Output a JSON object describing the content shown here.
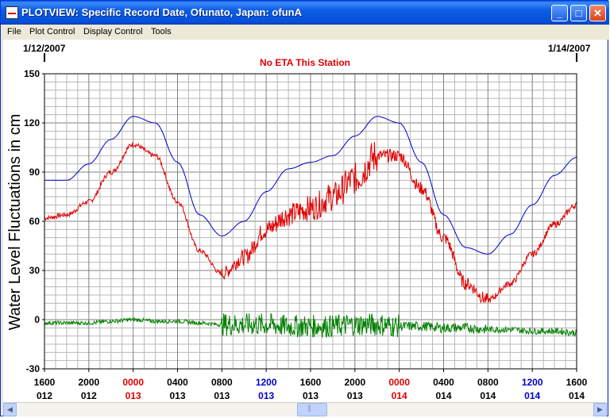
{
  "window": {
    "title": "PLOTVIEW: Specific Record Date, Ofunato, Japan: ofunA"
  },
  "menu": {
    "file": "File",
    "plot_control": "Plot Control",
    "display_control": "Display Control",
    "tools": "Tools"
  },
  "window_controls": {
    "minimize": "_",
    "maximize": "□",
    "close": "✕"
  },
  "plot": {
    "date_left": "1/12/2007",
    "date_right": "1/14/2007",
    "note": "No ETA This Station",
    "ylabel": "Water Level Fluctuations in cm",
    "y_ticks": [
      "150",
      "120",
      "90",
      "60",
      "30",
      "0",
      "-30"
    ],
    "x_ticks": [
      {
        "time": "1600",
        "day": "012",
        "color": "#000000"
      },
      {
        "time": "2000",
        "day": "012",
        "color": "#000000"
      },
      {
        "time": "0000",
        "day": "013",
        "color": "#e00000"
      },
      {
        "time": "0400",
        "day": "013",
        "color": "#000000"
      },
      {
        "time": "0800",
        "day": "013",
        "color": "#000000"
      },
      {
        "time": "1200",
        "day": "013",
        "color": "#0000c8"
      },
      {
        "time": "1600",
        "day": "013",
        "color": "#000000"
      },
      {
        "time": "2000",
        "day": "013",
        "color": "#000000"
      },
      {
        "time": "0000",
        "day": "014",
        "color": "#e00000"
      },
      {
        "time": "0400",
        "day": "014",
        "color": "#000000"
      },
      {
        "time": "0800",
        "day": "014",
        "color": "#000000"
      },
      {
        "time": "1200",
        "day": "014",
        "color": "#0000c8"
      },
      {
        "time": "1600",
        "day": "014",
        "color": "#000000"
      }
    ]
  },
  "chart_data": {
    "type": "line",
    "ylabel": "Water Level Fluctuations in cm",
    "ylim": [
      -30,
      150
    ],
    "x_range_hours": [
      0,
      48
    ],
    "x_unit": "hours since 1600 day 012",
    "grid": true,
    "series": [
      {
        "name": "",
        "color": "#0000c8",
        "x": [
          0,
          2,
          4,
          6,
          8,
          10,
          12,
          14,
          16,
          18,
          20,
          22,
          24,
          26,
          28,
          30,
          32,
          34,
          36,
          38,
          40,
          42,
          44,
          46,
          48
        ],
        "values": [
          85,
          85,
          95,
          110,
          124,
          120,
          96,
          64,
          51,
          60,
          78,
          92,
          96,
          100,
          112,
          124,
          120,
          96,
          64,
          44,
          40,
          52,
          70,
          88,
          99
        ]
      },
      {
        "name": "",
        "color": "#e00000",
        "x": [
          0,
          2,
          4,
          6,
          8,
          10,
          12,
          14,
          16,
          18,
          20,
          22,
          24,
          26,
          28,
          30,
          32,
          34,
          36,
          38,
          40,
          42,
          44,
          46,
          48
        ],
        "values": [
          62,
          64,
          72,
          90,
          107,
          100,
          72,
          42,
          28,
          38,
          55,
          64,
          68,
          75,
          86,
          100,
          100,
          80,
          50,
          22,
          12,
          22,
          40,
          58,
          70
        ]
      },
      {
        "name": "",
        "color": "#008000",
        "x": [
          0,
          2,
          4,
          6,
          8,
          10,
          12,
          14,
          16,
          18,
          20,
          22,
          24,
          26,
          28,
          30,
          32,
          34,
          36,
          38,
          40,
          42,
          44,
          46,
          48
        ],
        "values": [
          -2,
          -2,
          -2,
          -1,
          0,
          -1,
          -1,
          -2,
          -3,
          -3,
          -3,
          -4,
          -4,
          -4,
          -3,
          -3,
          -4,
          -4,
          -5,
          -5,
          -6,
          -6,
          -7,
          -7,
          -8
        ]
      }
    ]
  }
}
